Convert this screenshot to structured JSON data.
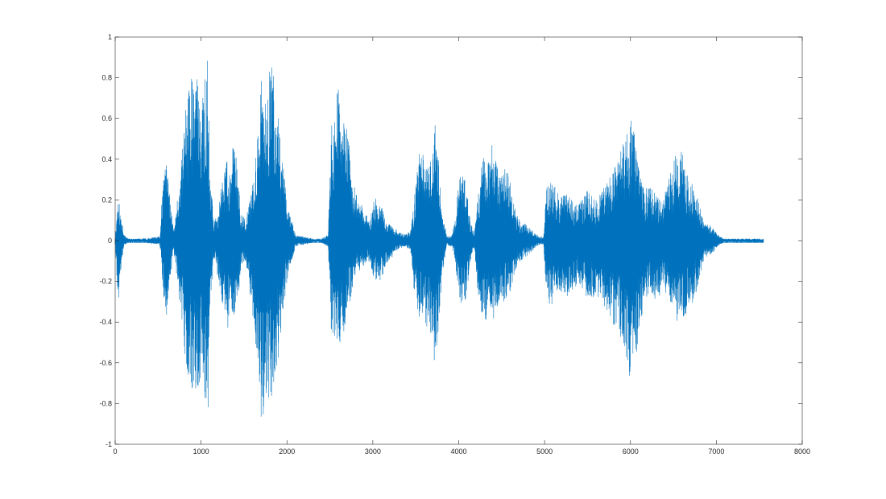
{
  "chart_data": {
    "type": "line",
    "title": "",
    "xlabel": "",
    "ylabel": "",
    "xlim": [
      0,
      8000
    ],
    "ylim": [
      -1,
      1
    ],
    "x_ticks": [
      0,
      1000,
      2000,
      3000,
      4000,
      5000,
      6000,
      7000,
      8000
    ],
    "y_ticks": [
      1,
      0.8,
      0.6,
      0.4,
      0.2,
      0,
      -0.2,
      -0.4,
      -0.6,
      -0.8,
      -1
    ],
    "x_tick_labels": [
      "0",
      "1000",
      "2000",
      "3000",
      "4000",
      "5000",
      "6000",
      "7000",
      "8000"
    ],
    "y_tick_labels": [
      "1",
      "0.8",
      "0.6",
      "0.4",
      "0.2",
      "0",
      "-0.2",
      "-0.4",
      "-0.6",
      "-0.8",
      "-1"
    ],
    "grid": false,
    "box": true,
    "series_color": "#0072BD",
    "series": [
      {
        "envelope_x": [
          0,
          40,
          70,
          100,
          150,
          300,
          520,
          560,
          600,
          640,
          680,
          760,
          820,
          900,
          960,
          1000,
          1050,
          1080,
          1100,
          1150,
          1200,
          1250,
          1300,
          1340,
          1380,
          1420,
          1460,
          1520,
          1580,
          1650,
          1700,
          1760,
          1820,
          1880,
          1940,
          2000,
          2100,
          2200,
          2300,
          2400,
          2480,
          2520,
          2580,
          2620,
          2660,
          2720,
          2780,
          2840,
          2900,
          2960,
          3020,
          3080,
          3140,
          3200,
          3260,
          3320,
          3380,
          3440,
          3480,
          3540,
          3600,
          3660,
          3720,
          3760,
          3800,
          3860,
          3920,
          3960,
          4000,
          4040,
          4080,
          4140,
          4180,
          4220,
          4260,
          4300,
          4340,
          4380,
          4420,
          4480,
          4540,
          4600,
          4660,
          4720,
          4780,
          4840,
          4880,
          4940,
          4990,
          5020,
          5080,
          5140,
          5200,
          5260,
          5320,
          5380,
          5440,
          5500,
          5560,
          5620,
          5680,
          5740,
          5800,
          5860,
          5920,
          5980,
          6020,
          6060,
          6100,
          6160,
          6220,
          6300,
          6380,
          6440,
          6500,
          6560,
          6620,
          6680,
          6740,
          6800,
          6860,
          6920,
          6980,
          7040,
          7100,
          7200,
          7300,
          7400,
          7500,
          7550
        ],
        "envelope_pos": [
          0.02,
          0.2,
          0.15,
          0.03,
          0.01,
          0.01,
          0.02,
          0.33,
          0.4,
          0.2,
          0.05,
          0.35,
          0.65,
          0.85,
          0.8,
          0.6,
          0.9,
          0.98,
          0.35,
          0.1,
          0.15,
          0.3,
          0.4,
          0.35,
          0.5,
          0.38,
          0.15,
          0.1,
          0.25,
          0.5,
          0.8,
          0.75,
          0.88,
          0.7,
          0.45,
          0.2,
          0.03,
          0.02,
          0.01,
          0.01,
          0.03,
          0.6,
          0.75,
          0.73,
          0.62,
          0.5,
          0.3,
          0.2,
          0.15,
          0.1,
          0.22,
          0.2,
          0.12,
          0.08,
          0.06,
          0.04,
          0.03,
          0.05,
          0.2,
          0.45,
          0.42,
          0.35,
          0.6,
          0.45,
          0.2,
          0.02,
          0.03,
          0.1,
          0.3,
          0.33,
          0.3,
          0.1,
          0.03,
          0.2,
          0.35,
          0.45,
          0.38,
          0.48,
          0.45,
          0.3,
          0.38,
          0.3,
          0.15,
          0.1,
          0.08,
          0.06,
          0.04,
          0.02,
          0.02,
          0.28,
          0.3,
          0.25,
          0.22,
          0.25,
          0.2,
          0.18,
          0.22,
          0.25,
          0.22,
          0.2,
          0.28,
          0.3,
          0.35,
          0.42,
          0.48,
          0.58,
          0.62,
          0.48,
          0.35,
          0.25,
          0.28,
          0.22,
          0.2,
          0.3,
          0.38,
          0.48,
          0.42,
          0.3,
          0.28,
          0.18,
          0.08,
          0.08,
          0.05,
          0.02,
          0.01,
          0.01,
          0.01,
          0.01,
          0.01,
          0.01
        ],
        "envelope_neg": [
          -0.02,
          -0.35,
          -0.15,
          -0.03,
          -0.01,
          -0.01,
          -0.02,
          -0.3,
          -0.38,
          -0.2,
          -0.05,
          -0.35,
          -0.6,
          -0.8,
          -0.78,
          -0.65,
          -0.8,
          -0.95,
          -0.38,
          -0.1,
          -0.18,
          -0.32,
          -0.45,
          -0.38,
          -0.4,
          -0.35,
          -0.15,
          -0.1,
          -0.3,
          -0.55,
          -0.9,
          -0.8,
          -0.8,
          -0.65,
          -0.4,
          -0.2,
          -0.03,
          -0.02,
          -0.01,
          -0.01,
          -0.03,
          -0.5,
          -0.55,
          -0.52,
          -0.45,
          -0.35,
          -0.2,
          -0.15,
          -0.12,
          -0.1,
          -0.2,
          -0.2,
          -0.15,
          -0.1,
          -0.06,
          -0.04,
          -0.03,
          -0.05,
          -0.25,
          -0.38,
          -0.4,
          -0.45,
          -0.6,
          -0.5,
          -0.2,
          -0.02,
          -0.03,
          -0.1,
          -0.3,
          -0.32,
          -0.3,
          -0.1,
          -0.03,
          -0.25,
          -0.35,
          -0.4,
          -0.38,
          -0.42,
          -0.38,
          -0.3,
          -0.3,
          -0.25,
          -0.15,
          -0.1,
          -0.08,
          -0.06,
          -0.04,
          -0.02,
          -0.02,
          -0.3,
          -0.32,
          -0.28,
          -0.25,
          -0.28,
          -0.25,
          -0.22,
          -0.25,
          -0.28,
          -0.28,
          -0.3,
          -0.32,
          -0.35,
          -0.42,
          -0.45,
          -0.55,
          -0.68,
          -0.7,
          -0.58,
          -0.45,
          -0.3,
          -0.25,
          -0.3,
          -0.25,
          -0.28,
          -0.35,
          -0.42,
          -0.38,
          -0.35,
          -0.3,
          -0.2,
          -0.08,
          -0.08,
          -0.05,
          -0.02,
          -0.01,
          -0.01,
          -0.01,
          -0.01,
          -0.01,
          -0.01
        ]
      }
    ]
  }
}
